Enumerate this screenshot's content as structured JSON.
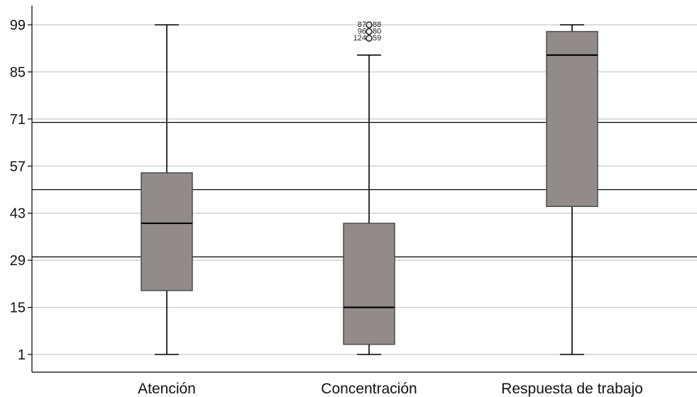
{
  "chart_data": {
    "type": "boxplot",
    "title": "",
    "xlabel": "",
    "ylabel": "",
    "ylim": [
      -5,
      110
    ],
    "yticks": [
      1,
      15,
      29,
      43,
      57,
      71,
      85,
      99
    ],
    "ytick_labels": [
      "1",
      "15",
      "29",
      "43",
      "57",
      "71",
      "85",
      "99"
    ],
    "grid": true,
    "reference_lines": [
      30,
      50,
      70
    ],
    "categories": [
      "Atención",
      "Concentración",
      "Respuesta de trabajo"
    ],
    "boxes": [
      {
        "category": "Atención",
        "whisker_low": 1,
        "q1": 20,
        "median": 40,
        "q3": 55,
        "whisker_high": 99,
        "outliers": []
      },
      {
        "category": "Concentración",
        "whisker_low": 1,
        "q1": 4,
        "median": 15,
        "q3": 40,
        "whisker_high": 90,
        "outliers": [
          {
            "value": 99,
            "labels": [
              "87",
              "88"
            ]
          },
          {
            "value": 97,
            "labels": [
              "96",
              "80"
            ]
          },
          {
            "value": 95,
            "labels": [
              "124",
              "59"
            ]
          }
        ]
      },
      {
        "category": "Respuesta de trabajo",
        "whisker_low": 1,
        "q1": 45,
        "median": 90,
        "q3": 97,
        "whisker_high": 99,
        "outliers": []
      }
    ],
    "colors": {
      "box_fill": "#918c8a",
      "box_stroke": "#444444",
      "whisker": "#000000",
      "grid": "#c8c8c8",
      "reference_line": "#000000"
    }
  }
}
